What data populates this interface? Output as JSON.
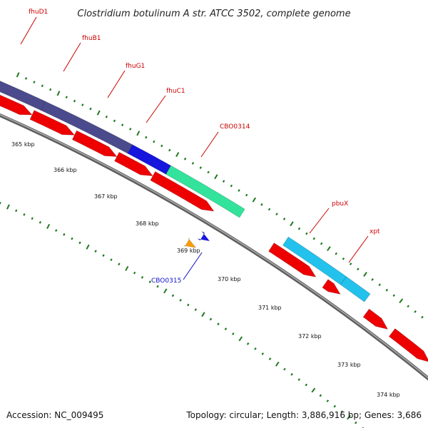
{
  "title": "Clostridium botulinum A str. ATCC 3502, complete genome",
  "accession": "Accession: NC_009495",
  "topology": "Topology: circular; Length: 3,886,916 bp; Genes: 3,686",
  "colors": {
    "backbone": "#8a8a8a",
    "tick": "#1e7a1e",
    "red_feature": "#ee0000",
    "label_red": "#cc0000",
    "label_blue": "#1010cc",
    "fhuD1": "#4a4a8c",
    "fhuB1": "#4a4a8c",
    "fhuG1": "#4a4a8c",
    "fhuC1": "#1515dd",
    "CBO0314": "#33e39b",
    "pbuX": "#22c2ec",
    "xpt": "#22c2ec",
    "CBO0315_top": "#1515ee",
    "CBO0315_bottom": "#ff9a00"
  },
  "kbp_labels": [
    "365 kbp",
    "366 kbp",
    "367 kbp",
    "368 kbp",
    "369 kbp",
    "370 kbp",
    "371 kbp",
    "372 kbp",
    "373 kbp",
    "374 kbp"
  ],
  "genes": [
    {
      "name": "fhuD1",
      "label_color": "label_red"
    },
    {
      "name": "fhuB1",
      "label_color": "label_red"
    },
    {
      "name": "fhuG1",
      "label_color": "label_red"
    },
    {
      "name": "fhuC1",
      "label_color": "label_red"
    },
    {
      "name": "CBO0314",
      "label_color": "label_red"
    },
    {
      "name": "pbuX",
      "label_color": "label_red"
    },
    {
      "name": "xpt",
      "label_color": "label_red"
    },
    {
      "name": "CBO0315",
      "label_color": "label_blue"
    }
  ]
}
